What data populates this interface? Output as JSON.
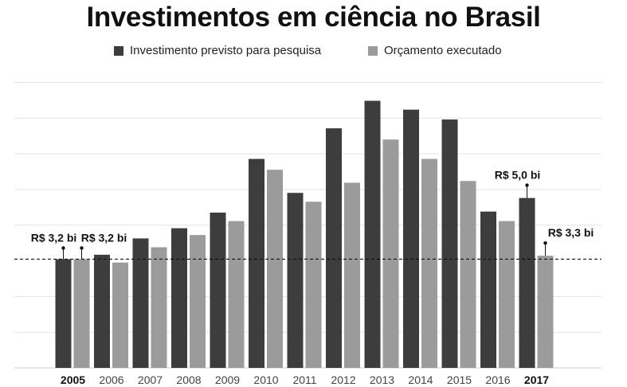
{
  "chart_data": {
    "type": "bar",
    "title": "Investimentos em ciência no Brasil",
    "categories": [
      "2005",
      "2006",
      "2007",
      "2008",
      "2009",
      "2010",
      "2011",
      "2012",
      "2013",
      "2014",
      "2015",
      "2016",
      "2017"
    ],
    "bold_categories": [
      "2005",
      "2017"
    ],
    "series": [
      {
        "name": "Investimento previsto para pesquisa",
        "color": "#3d3d3d",
        "values": [
          3.2,
          3.33,
          3.81,
          4.11,
          4.57,
          6.15,
          5.15,
          7.05,
          7.86,
          7.6,
          7.31,
          4.6,
          5.0
        ]
      },
      {
        "name": "Orçamento executado",
        "color": "#9b9b9b",
        "values": [
          3.2,
          3.1,
          3.55,
          3.91,
          4.32,
          5.83,
          4.89,
          5.45,
          6.72,
          6.15,
          5.5,
          4.32,
          3.3
        ]
      }
    ],
    "reference_line": {
      "value": 3.2,
      "style": "dashed"
    },
    "annotations": [
      {
        "text": "R$ 3,2 bi",
        "category": "2005",
        "series": 0,
        "value": 3.2
      },
      {
        "text": "R$ 3,2 bi",
        "category": "2005",
        "series": 1,
        "value": 3.2
      },
      {
        "text": "R$ 5,0 bi",
        "category": "2017",
        "series": 0,
        "value": 5.0
      },
      {
        "text": "R$ 3,3 bi",
        "category": "2017",
        "series": 1,
        "value": 3.3
      }
    ],
    "ylim": [
      0,
      8.6
    ],
    "gridlines": [
      1.05,
      2.1,
      3.2,
      4.2,
      5.25,
      6.3,
      7.35,
      8.4
    ],
    "grid": true,
    "legend_position": "top-center"
  }
}
